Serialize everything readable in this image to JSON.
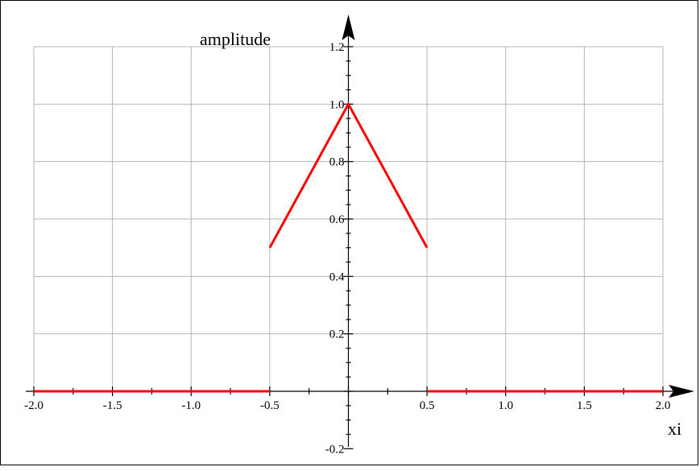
{
  "chart_data": {
    "type": "line",
    "xlabel": "xi",
    "ylabel": "amplitude",
    "xlim": [
      -2.0,
      2.0
    ],
    "ylim": [
      -0.2,
      1.2
    ],
    "grid": true,
    "x_ticks": [
      -2.0,
      -1.5,
      -1.0,
      -0.5,
      0,
      0.5,
      1.0,
      1.5,
      2.0
    ],
    "x_tick_labels": [
      "-2.0",
      "-1.5",
      "-1.0",
      "-0.5",
      "",
      "0.5",
      "1.0",
      "1.5",
      "2.0"
    ],
    "y_ticks": [
      -0.2,
      0.2,
      0.4,
      0.6,
      0.8,
      1.0,
      1.2
    ],
    "y_tick_labels": [
      "-0.2",
      "0.2",
      "0.4",
      "0.6",
      "0.8",
      "1.0",
      "1.2"
    ],
    "series": [
      {
        "color": "#ff0000",
        "segments": [
          [
            [
              -2.0,
              0
            ],
            [
              -0.5,
              0
            ]
          ],
          [
            [
              -0.5,
              0.5
            ],
            [
              0,
              1.0
            ],
            [
              0.5,
              0.5
            ]
          ],
          [
            [
              0.5,
              0
            ],
            [
              2.0,
              0
            ]
          ]
        ]
      }
    ]
  }
}
